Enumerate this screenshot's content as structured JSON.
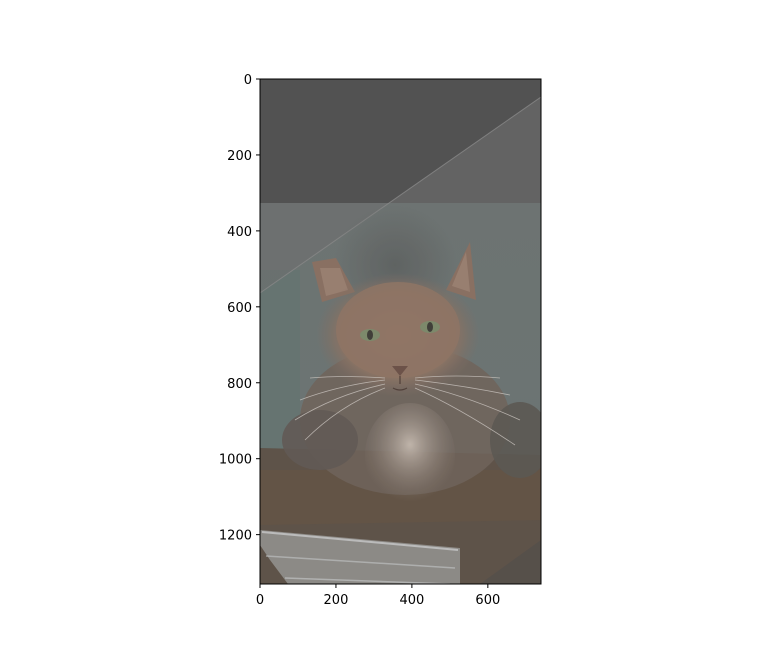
{
  "chart_data": {
    "type": "image",
    "title": "",
    "xlabel": "",
    "ylabel": "",
    "xlim": [
      0,
      740
    ],
    "ylim": [
      1330,
      0
    ],
    "x_ticks": [
      0,
      200,
      400,
      600
    ],
    "y_ticks": [
      0,
      200,
      400,
      600,
      800,
      1000,
      1200
    ],
    "x_tick_labels": [
      "0",
      "200",
      "400",
      "600"
    ],
    "y_tick_labels": [
      "0",
      "200",
      "400",
      "600",
      "800",
      "1000",
      "1200"
    ],
    "grid": false,
    "legend": "none"
  },
  "image": {
    "subject": "blended overlay of a long-haired cat and a person",
    "colors": {
      "upper_dark": "#4f4f4f",
      "wall": "#6f7675",
      "cat_fur": "#8d7565",
      "wood": "#5b4a3d",
      "cloth": "#b8bcbe",
      "axes": "#000000"
    }
  }
}
